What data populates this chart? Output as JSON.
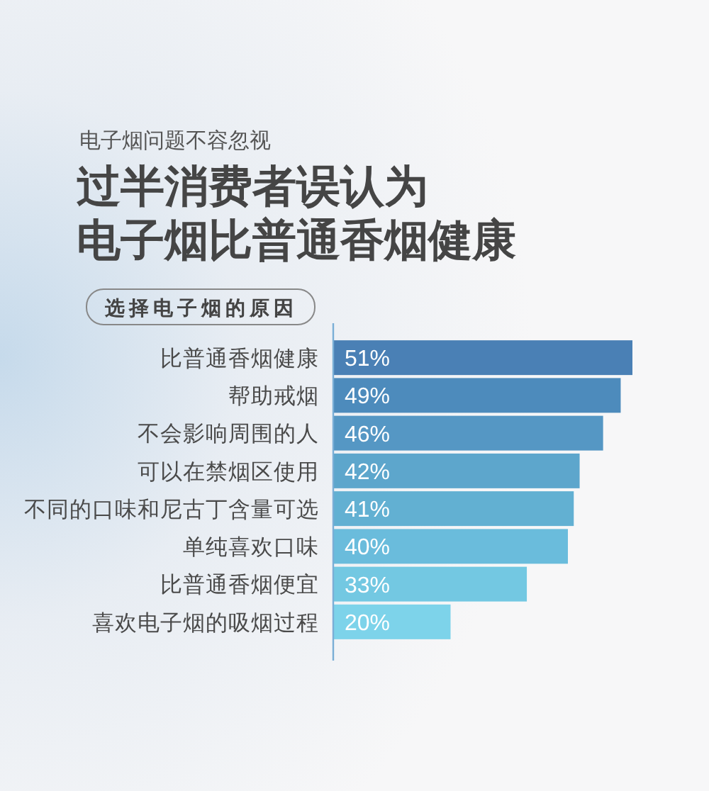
{
  "chart_data": {
    "type": "bar",
    "orientation": "horizontal",
    "subtitle": "电子烟问题不容忽视",
    "title": "过半消费者误认为电子烟比普通香烟健康",
    "ylabel": "选择电子烟的原因",
    "categories": [
      "比普通香烟健康",
      "帮助戒烟",
      "不会影响周围的人",
      "可以在禁烟区使用",
      "不同的口味和尼古丁含量可选",
      "单纯喜欢口味",
      "比普通香烟便宜",
      "喜欢电子烟的吸烟过程"
    ],
    "values": [
      51,
      49,
      46,
      42,
      41,
      40,
      33,
      20
    ],
    "value_labels": [
      "51%",
      "49%",
      "46%",
      "42%",
      "41%",
      "40%",
      "33%",
      "20%"
    ],
    "colors": [
      "#4a80b5",
      "#4d8bbc",
      "#5597c4",
      "#5da6cc",
      "#62b0d2",
      "#6abcdc",
      "#73c8e2",
      "#7dd3ea"
    ],
    "tick_labels": "y"
  }
}
